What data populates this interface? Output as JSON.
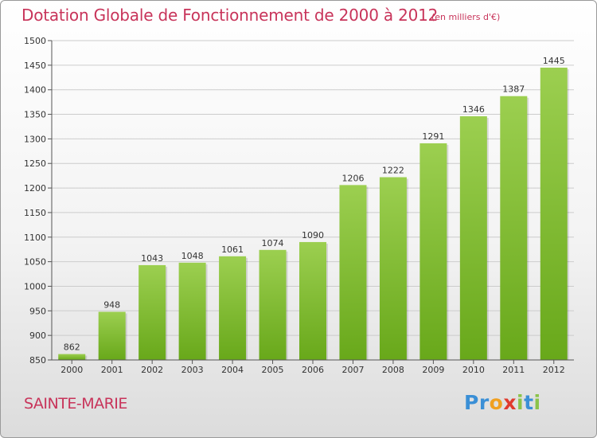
{
  "header": {
    "title": "Dotation Globale de Fonctionnement de 2000 à 2012",
    "unit_note": "(en milliers d'€)"
  },
  "footer": {
    "commune": "SAINTE-MARIE",
    "logo_text": "Proxiti",
    "logo_letters": [
      {
        "char": "P",
        "color": "#3a8fd6"
      },
      {
        "char": "r",
        "color": "#3a8fd6"
      },
      {
        "char": "o",
        "color": "#f0a020"
      },
      {
        "char": "x",
        "color": "#e03a2e"
      },
      {
        "char": "i",
        "color": "#8bc34a"
      },
      {
        "char": "t",
        "color": "#3a8fd6"
      },
      {
        "char": "i",
        "color": "#8bc34a"
      }
    ]
  },
  "colors": {
    "accent": "#c8345a",
    "bar_top": "#9ccf50",
    "bar_bottom": "#68a81a",
    "grid": "#cccccc",
    "axis": "#555555"
  },
  "chart_data": {
    "type": "bar",
    "title": "Dotation Globale de Fonctionnement de 2000 à 2012",
    "subtitle": "(en milliers d'€)",
    "xlabel": "",
    "ylabel": "",
    "categories": [
      "2000",
      "2001",
      "2002",
      "2003",
      "2004",
      "2005",
      "2006",
      "2007",
      "2008",
      "2009",
      "2010",
      "2011",
      "2012"
    ],
    "values": [
      862,
      948,
      1043,
      1048,
      1061,
      1074,
      1090,
      1206,
      1222,
      1291,
      1346,
      1387,
      1445
    ],
    "ylim": [
      850,
      1500
    ],
    "yticks": [
      850,
      900,
      950,
      1000,
      1050,
      1100,
      1150,
      1200,
      1250,
      1300,
      1350,
      1400,
      1450,
      1500
    ],
    "grid": true,
    "data_labels": true
  }
}
